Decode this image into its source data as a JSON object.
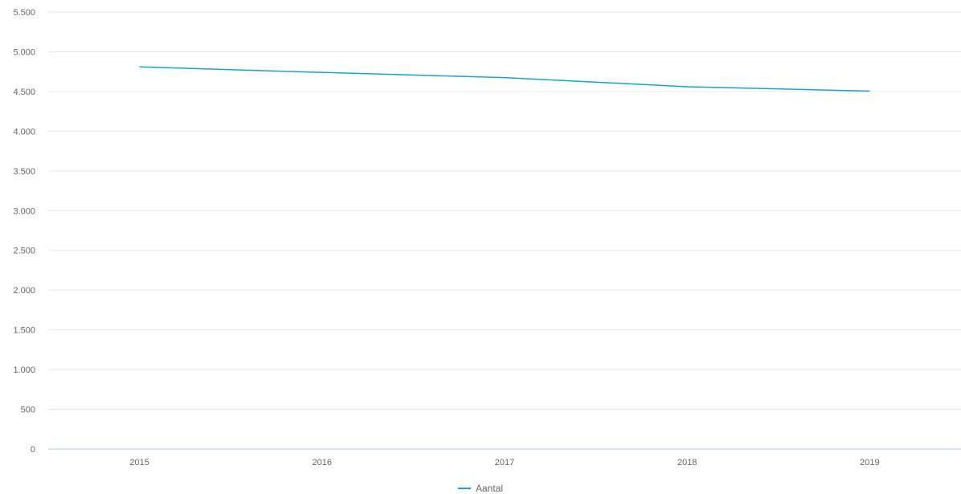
{
  "chart_data": {
    "type": "line",
    "title": "",
    "xlabel": "",
    "ylabel": "",
    "categories": [
      "2015",
      "2016",
      "2017",
      "2018",
      "2019"
    ],
    "series": [
      {
        "name": "Aantal",
        "values": [
          4810,
          4740,
          4675,
          4560,
          4505
        ],
        "color": "#1aa0d8"
      }
    ],
    "ylim": [
      0,
      5500
    ],
    "yticks": [
      {
        "value": 0,
        "label": "0"
      },
      {
        "value": 500,
        "label": "500"
      },
      {
        "value": 1000,
        "label": "1.000"
      },
      {
        "value": 1500,
        "label": "1.500"
      },
      {
        "value": 2000,
        "label": "2.000"
      },
      {
        "value": 2500,
        "label": "2.500"
      },
      {
        "value": 3000,
        "label": "3.000"
      },
      {
        "value": 3500,
        "label": "3.500"
      },
      {
        "value": 4000,
        "label": "4.000"
      },
      {
        "value": 4500,
        "label": "4.500"
      },
      {
        "value": 5000,
        "label": "5.000"
      },
      {
        "value": 5500,
        "label": "5.500"
      }
    ],
    "grid": true,
    "legend_position": "bottom-center"
  },
  "colors": {
    "grid": "#e6e6e6",
    "axis": "#c8d9ea",
    "series": "#1aa0d8"
  }
}
